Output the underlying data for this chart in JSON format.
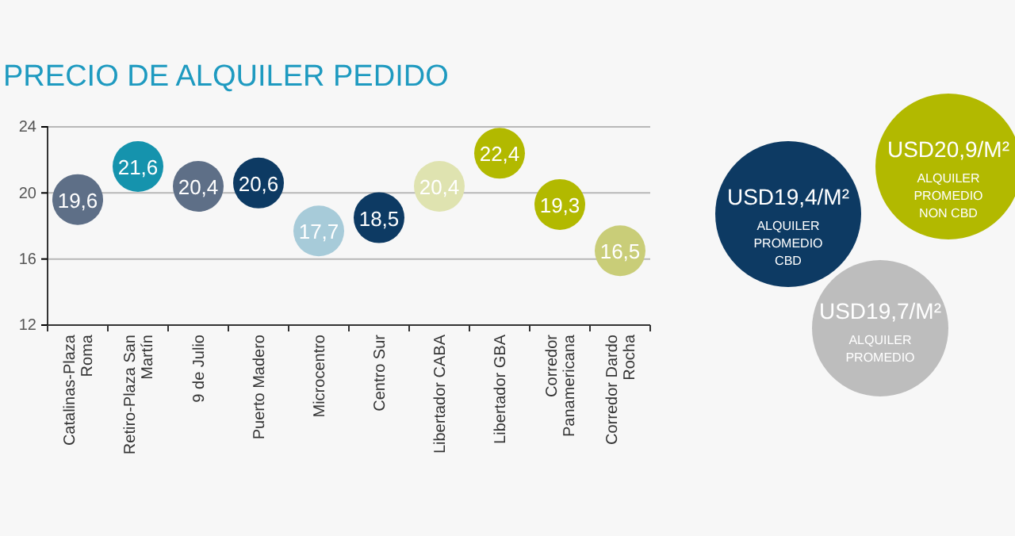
{
  "chart_data": [
    {
      "type": "scatter",
      "title": "PRECIO DE ALQUILER PEDIDO",
      "categories": [
        "Catalinas-Plaza Roma",
        "Retiro-Plaza San Martín",
        "9 de Julio",
        "Puerto Madero",
        "Microcentro",
        "Centro Sur",
        "Libertador CABA",
        "Libertador GBA",
        "Corredor Panamericana",
        "Corredor Dardo Rocha"
      ],
      "values": [
        19.6,
        21.6,
        20.4,
        20.6,
        17.7,
        18.5,
        20.4,
        22.4,
        19.3,
        16.5
      ],
      "colors": [
        "#5e6f87",
        "#1593ad",
        "#5e6f87",
        "#0d3a63",
        "#a7cbd9",
        "#0d3a63",
        "#dfe3b0",
        "#b2b900",
        "#b2b900",
        "#c9cd78"
      ],
      "value_labels": [
        "19,6",
        "21,6",
        "20,4",
        "20,6",
        "17,7",
        "18,5",
        "20,4",
        "22,4",
        "19,3",
        "16,5"
      ],
      "ylim": [
        12,
        24
      ],
      "yticks": [
        12,
        16,
        20,
        24
      ],
      "grid": "y",
      "marker": "circle"
    },
    {
      "type": "other",
      "colors": [
        "#0d3a63",
        "#b2b900",
        "#bdbdbd"
      ],
      "annotations": [
        "USD19,4/M²",
        "ALQUILER PROMEDIO CBD",
        "USD20,9/M²",
        "ALQUILER PROMEDIO NON CBD",
        "USD19,7/M²",
        "ALQUILER PROMEDIO"
      ]
    }
  ]
}
